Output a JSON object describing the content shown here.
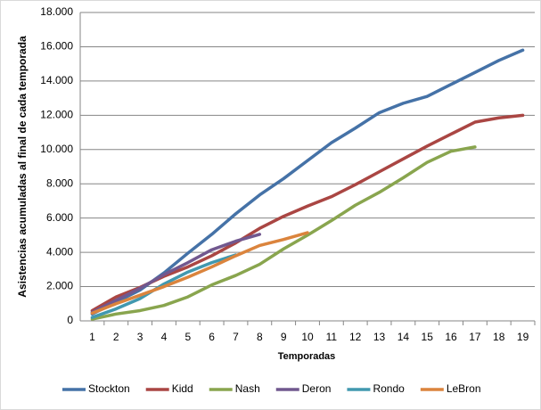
{
  "chart_data": {
    "type": "line",
    "x_label": "Temporadas",
    "y_label": "Asistencias acumuladas al final de cada temporada",
    "categories": [
      "1",
      "2",
      "3",
      "4",
      "5",
      "6",
      "7",
      "8",
      "9",
      "10",
      "11",
      "12",
      "13",
      "14",
      "15",
      "16",
      "17",
      "18",
      "19"
    ],
    "ylim": [
      0,
      18000
    ],
    "yticks": [
      0,
      {
        "value": 2000,
        "label": "2.000"
      },
      {
        "value": 4000,
        "label": "4.000"
      },
      {
        "value": 6000,
        "label": "6.000"
      },
      {
        "value": 8000,
        "label": "8.000"
      },
      {
        "value": 10000,
        "label": "10.000"
      },
      {
        "value": 12000,
        "label": "12.000"
      },
      {
        "value": 14000,
        "label": "14.000"
      },
      {
        "value": 16000,
        "label": "16.000"
      },
      {
        "value": 18000,
        "label": "18.000"
      }
    ],
    "grid": true,
    "legend": "bottom",
    "series": [
      {
        "name": "Stockton",
        "color": "#4572a7",
        "values": [
          400,
          1100,
          1800,
          2800,
          3950,
          5050,
          6250,
          7350,
          8300,
          9350,
          10400,
          11250,
          12150,
          12700,
          13100,
          13800,
          14500,
          15200,
          15800
        ]
      },
      {
        "name": "Kidd",
        "color": "#aa4643",
        "values": [
          600,
          1400,
          1950,
          2600,
          3150,
          3800,
          4550,
          5400,
          6100,
          6700,
          7250,
          7950,
          8700,
          9450,
          10200,
          10900,
          11600,
          11850,
          12000
        ]
      },
      {
        "name": "Nash",
        "color": "#89a54e",
        "values": [
          100,
          400,
          600,
          900,
          1400,
          2100,
          2650,
          3300,
          4200,
          5000,
          5850,
          6750,
          7500,
          8350,
          9250,
          9900,
          10150,
          null,
          null
        ]
      },
      {
        "name": "Deron",
        "color": "#71588f",
        "values": [
          500,
          1200,
          1900,
          2700,
          3400,
          4150,
          4650,
          5050,
          null,
          null,
          null,
          null,
          null,
          null,
          null,
          null,
          null,
          null,
          null
        ]
      },
      {
        "name": "Rondo",
        "color": "#4198af",
        "values": [
          200,
          700,
          1300,
          2150,
          2850,
          3400,
          3850,
          null,
          null,
          null,
          null,
          null,
          null,
          null,
          null,
          null,
          null,
          null,
          null
        ]
      },
      {
        "name": "LeBron",
        "color": "#db843d",
        "values": [
          450,
          1000,
          1500,
          2000,
          2550,
          3150,
          3800,
          4400,
          4750,
          5150,
          null,
          null,
          null,
          null,
          null,
          null,
          null,
          null,
          null
        ]
      }
    ]
  }
}
